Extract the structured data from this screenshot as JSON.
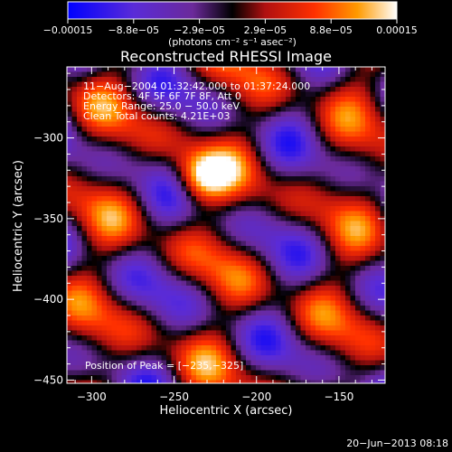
{
  "chart_data": {
    "type": "heatmap",
    "title": "Reconstructed RHESSI Image",
    "xlabel": "Heliocentric X (arcsec)",
    "ylabel": "Heliocentric Y (arcsec)",
    "xlim": [
      -315,
      -122
    ],
    "ylim": [
      -452,
      -256
    ],
    "x_ticks": [
      -300,
      -250,
      -200,
      -150
    ],
    "x_tick_labels": [
      "−300",
      "−250",
      "−200",
      "−150"
    ],
    "y_ticks": [
      -300,
      -350,
      -400,
      -450
    ],
    "y_tick_labels": [
      "−300",
      "−350",
      "−400",
      "−450"
    ],
    "colorbar": {
      "range": [
        -0.00015,
        0.00015
      ],
      "tick_labels": [
        "−0.00015",
        "−8.8e−05",
        "−2.9e−05",
        "2.9e−05",
        "8.8e−05",
        "0.00015"
      ],
      "unit_label": "(photons cm⁻² s⁻¹ asec⁻²)",
      "colors": [
        "#0000ff",
        "#5a2bd8",
        "#6b2a9a",
        "#000000",
        "#b01010",
        "#ff3000",
        "#ff9a00",
        "#ffffff"
      ]
    },
    "annotations": [
      "11−Aug−2004 01:32:42.000 to 01:37:24.000",
      "Detectors: 4F 5F 6F 7F 8F, Att 0",
      "Energy Range: 25.0 − 50.0 keV",
      "Clean    Total counts: 4.21E+03"
    ],
    "peak_label": "Position of Peak = [−235,−325]",
    "peak": [
      -235,
      -325
    ]
  },
  "footer": {
    "timestamp": "20−Jun−2013 08:18"
  }
}
